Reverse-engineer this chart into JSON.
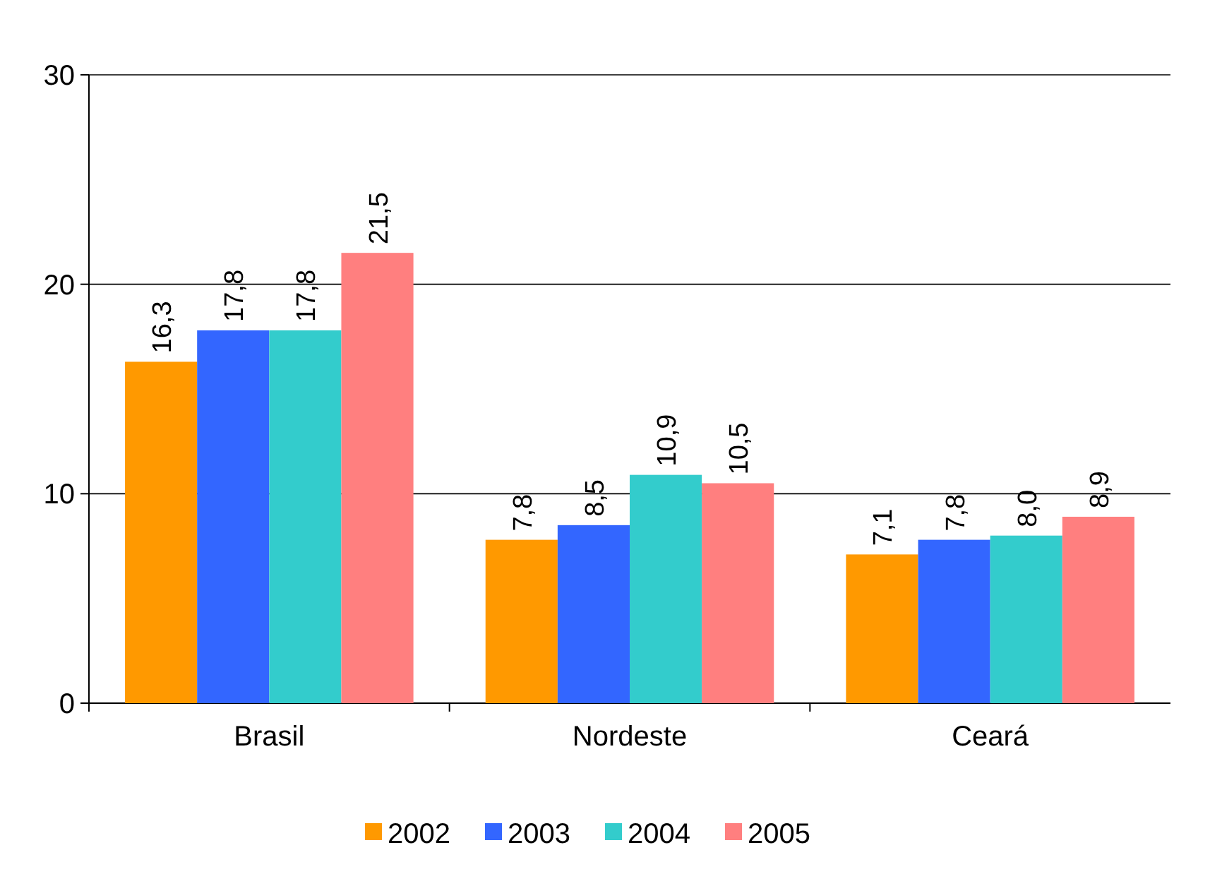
{
  "chart_data": {
    "type": "bar",
    "categories": [
      "Brasil",
      "Nordeste",
      "Ceará"
    ],
    "series": [
      {
        "name": "2002",
        "color": "#ff9900",
        "values": [
          16.3,
          7.8,
          7.1
        ],
        "value_labels": [
          "16,3",
          "7,8",
          "7,1"
        ]
      },
      {
        "name": "2003",
        "color": "#3366ff",
        "values": [
          17.8,
          8.5,
          7.8
        ],
        "value_labels": [
          "17,8",
          "8,5",
          "7,8"
        ]
      },
      {
        "name": "2004",
        "color": "#33cccc",
        "values": [
          17.8,
          10.9,
          8.0
        ],
        "value_labels": [
          "17,8",
          "10,9",
          "8,0"
        ]
      },
      {
        "name": "2005",
        "color": "#ff7f7f",
        "values": [
          21.5,
          10.5,
          8.9
        ],
        "value_labels": [
          "21,5",
          "10,5",
          "8,9"
        ]
      }
    ],
    "ylim": [
      0,
      30
    ],
    "yticks": [
      0,
      10,
      20,
      30
    ],
    "grid": "y",
    "legend": "bottom"
  }
}
